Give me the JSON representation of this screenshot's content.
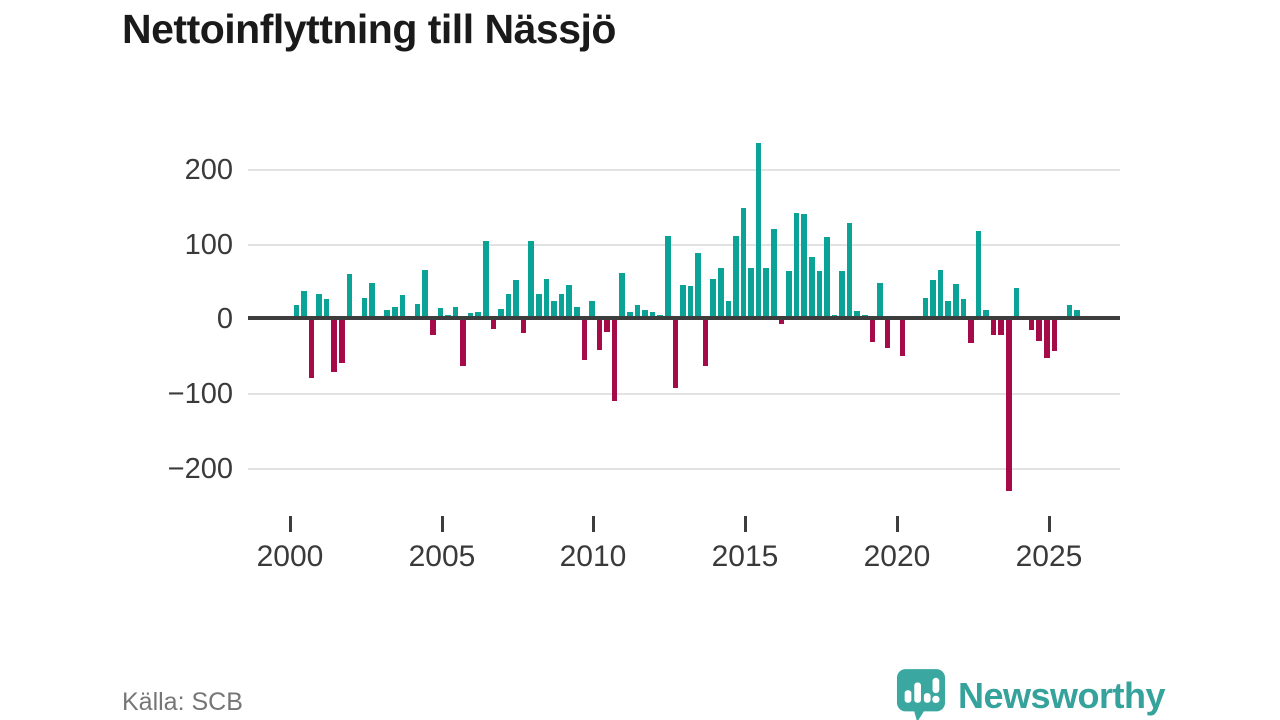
{
  "title": "Nettoinflyttning till Nässjö",
  "source": "Källa: SCB",
  "logo": {
    "text": "Newsworthy",
    "icon": "newsworthy-bubble-barchart-icon"
  },
  "colors": {
    "positive_bar": "#0aa396",
    "negative_bar": "#a50b48",
    "grid": "#e2e2e2",
    "zero_line": "#3d3d3d",
    "brand_teal": "#35a29b",
    "title_text": "#1a1a1a",
    "axis_text": "#3a3a3a",
    "source_text": "#767676"
  },
  "chart_data": {
    "type": "bar",
    "title": "Nettoinflyttning till Nässjö",
    "xlabel": "",
    "ylabel": "",
    "frequency": "quarterly",
    "x_start": "2000 Q1",
    "x_end": "2025 Q4",
    "x_tick_labels": [
      "2000",
      "2005",
      "2010",
      "2015",
      "2020",
      "2025"
    ],
    "y_tick_labels": [
      "200",
      "100",
      "0",
      "−100",
      "−200"
    ],
    "y_ticks": [
      200,
      100,
      0,
      -100,
      -200
    ],
    "ylim": [
      -250,
      260
    ],
    "grid": "horizontal-only",
    "legend": "none",
    "values": [
      18,
      37,
      -80,
      33,
      26,
      -72,
      -60,
      59,
      0,
      27,
      48,
      0,
      12,
      15,
      32,
      0,
      20,
      65,
      -22,
      14,
      5,
      16,
      -63,
      8,
      9,
      104,
      -14,
      13,
      33,
      52,
      -20,
      104,
      33,
      53,
      24,
      33,
      45,
      16,
      -56,
      23,
      -42,
      -18,
      -110,
      61,
      9,
      18,
      12,
      9,
      5,
      110,
      -93,
      45,
      44,
      87,
      -63,
      53,
      68,
      23,
      110,
      148,
      68,
      234,
      67,
      119,
      -8,
      63,
      141,
      139,
      82,
      64,
      109,
      5,
      64,
      128,
      10,
      5,
      -32,
      47,
      -40,
      0,
      -50,
      0,
      4,
      27,
      51,
      65,
      23,
      46,
      26,
      -33,
      117,
      12,
      -22,
      -22,
      -230,
      41,
      3,
      -15,
      -30,
      -53,
      -43,
      0,
      18,
      11
    ]
  }
}
